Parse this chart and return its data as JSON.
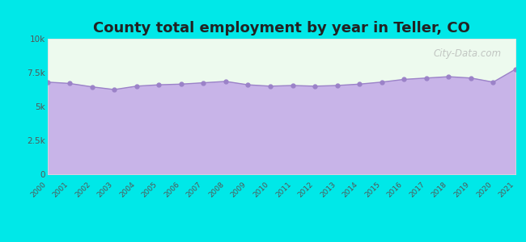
{
  "title": "County total employment by year in Teller, CO",
  "title_fontsize": 13,
  "background_color": "#00e8e8",
  "plot_bg_top": "#edfaee",
  "plot_bg_bottom": "#f5eeff",
  "fill_color": "#c8b4e8",
  "line_color": "#9b82c8",
  "marker_color": "#9b82c8",
  "years": [
    2000,
    2001,
    2002,
    2003,
    2004,
    2005,
    2006,
    2007,
    2008,
    2009,
    2010,
    2011,
    2012,
    2013,
    2014,
    2015,
    2016,
    2017,
    2018,
    2019,
    2020,
    2021
  ],
  "values": [
    6800,
    6700,
    6450,
    6250,
    6500,
    6600,
    6650,
    6750,
    6850,
    6600,
    6500,
    6550,
    6500,
    6550,
    6650,
    6800,
    7000,
    7100,
    7200,
    7100,
    6800,
    7750
  ],
  "ylim": [
    0,
    10000
  ],
  "yticks": [
    0,
    2500,
    5000,
    7500,
    10000
  ],
  "ytick_labels": [
    "0",
    "2.5k",
    "5k",
    "7.5k",
    "10k"
  ],
  "watermark": "City-Data.com"
}
